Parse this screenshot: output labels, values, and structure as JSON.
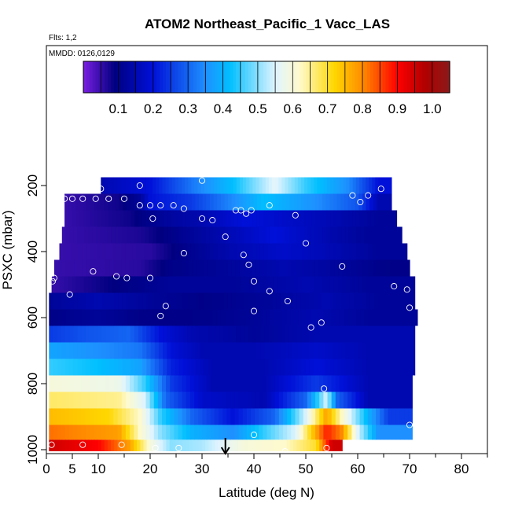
{
  "chart_data": {
    "type": "heatmap",
    "title": "ATOM2 Northeast_Pacific_1 Vacc_LAS",
    "flights_label": "Flts: 1,2",
    "dates_label": "MMDD: 0126,0129",
    "xlabel": "Latitude (deg N)",
    "ylabel": "PSXC (mbar)",
    "xlim": [
      0,
      85
    ],
    "ylim": [
      1000,
      0
    ],
    "x_ticks": [
      0,
      5,
      10,
      20,
      30,
      40,
      50,
      60,
      70,
      80
    ],
    "y_ticks": [
      200,
      400,
      600,
      800,
      1000
    ],
    "colorbar": {
      "range": [
        0,
        1.05
      ],
      "tick_values": [
        0.1,
        0.2,
        0.3,
        0.4,
        0.5,
        0.6,
        0.7,
        0.8,
        0.9,
        1.0
      ],
      "tick_labels": [
        "0.1",
        "0.2",
        "0.3",
        "0.4",
        "0.5",
        "0.6",
        "0.7",
        "0.8",
        "0.9",
        "1.0"
      ],
      "colors": [
        "#7a1fe0",
        "#000080",
        "#0010d8",
        "#1e90ff",
        "#00bfff",
        "#dff4ff",
        "#fffacd",
        "#ffd700",
        "#ff8c00",
        "#ff0000",
        "#b00000",
        "#8b1a1a"
      ],
      "stops": [
        0,
        0.09,
        0.2,
        0.35,
        0.42,
        0.55,
        0.62,
        0.72,
        0.8,
        0.9,
        0.98,
        1.05
      ]
    },
    "rows": [
      {
        "p": 200,
        "x0": 10.5,
        "x1": 66.5,
        "cells": [
          [
            10.5,
            0.15
          ],
          [
            20,
            0.2
          ],
          [
            28,
            0.32
          ],
          [
            36,
            0.42
          ],
          [
            44,
            0.56
          ],
          [
            50,
            0.45
          ],
          [
            58,
            0.35
          ],
          [
            64,
            0.2
          ]
        ]
      },
      {
        "p": 250,
        "x0": 3.5,
        "x1": 66.5,
        "cells": [
          [
            3.5,
            0.05
          ],
          [
            14,
            0.08
          ],
          [
            18,
            0.12
          ],
          [
            20,
            0.2
          ],
          [
            28,
            0.25
          ],
          [
            34,
            0.32
          ],
          [
            42,
            0.42
          ],
          [
            52,
            0.35
          ],
          [
            60,
            0.28
          ],
          [
            64,
            0.15
          ]
        ]
      },
      {
        "p": 300,
        "x0": 3.5,
        "x1": 67.5,
        "cells": [
          [
            3.5,
            0.05
          ],
          [
            16,
            0.08
          ],
          [
            22,
            0.12
          ],
          [
            30,
            0.15
          ],
          [
            38,
            0.2
          ],
          [
            46,
            0.18
          ],
          [
            56,
            0.15
          ],
          [
            64,
            0.12
          ]
        ]
      },
      {
        "p": 350,
        "x0": 3,
        "x1": 68.5,
        "cells": [
          [
            3,
            0.05
          ],
          [
            18,
            0.07
          ],
          [
            24,
            0.1
          ],
          [
            34,
            0.15
          ],
          [
            44,
            0.2
          ],
          [
            54,
            0.15
          ],
          [
            62,
            0.12
          ]
        ]
      },
      {
        "p": 400,
        "x0": 2.5,
        "x1": 69.5,
        "cells": [
          [
            2.5,
            0.05
          ],
          [
            20,
            0.06
          ],
          [
            26,
            0.1
          ],
          [
            36,
            0.15
          ],
          [
            46,
            0.18
          ],
          [
            56,
            0.15
          ],
          [
            64,
            0.12
          ]
        ]
      },
      {
        "p": 450,
        "x0": 1.5,
        "x1": 70,
        "cells": [
          [
            1.5,
            0.05
          ],
          [
            18,
            0.06
          ],
          [
            24,
            0.1
          ],
          [
            34,
            0.12
          ],
          [
            46,
            0.15
          ],
          [
            58,
            0.12
          ],
          [
            66,
            0.1
          ]
        ]
      },
      {
        "p": 500,
        "x0": 1,
        "x1": 71,
        "cells": [
          [
            1,
            0.05
          ],
          [
            10,
            0.08
          ],
          [
            16,
            0.1
          ],
          [
            24,
            0.12
          ],
          [
            36,
            0.12
          ],
          [
            50,
            0.15
          ],
          [
            62,
            0.12
          ]
        ]
      },
      {
        "p": 550,
        "x0": 0.5,
        "x1": 71,
        "cells": [
          [
            0.5,
            0.12
          ],
          [
            10,
            0.15
          ],
          [
            20,
            0.12
          ],
          [
            30,
            0.1
          ],
          [
            42,
            0.12
          ],
          [
            54,
            0.15
          ],
          [
            64,
            0.12
          ]
        ]
      },
      {
        "p": 600,
        "x0": 0.5,
        "x1": 71.5,
        "cells": [
          [
            0.5,
            0.1
          ],
          [
            10,
            0.12
          ],
          [
            18,
            0.1
          ],
          [
            28,
            0.1
          ],
          [
            40,
            0.12
          ],
          [
            52,
            0.15
          ],
          [
            62,
            0.12
          ]
        ]
      },
      {
        "p": 650,
        "x0": 0.5,
        "x1": 71,
        "cells": [
          [
            0.5,
            0.25
          ],
          [
            8,
            0.28
          ],
          [
            16,
            0.3
          ],
          [
            22,
            0.2
          ],
          [
            28,
            0.15
          ],
          [
            40,
            0.12
          ],
          [
            52,
            0.15
          ],
          [
            62,
            0.15
          ]
        ]
      },
      {
        "p": 700,
        "x0": 0.5,
        "x1": 71,
        "cells": [
          [
            0.5,
            0.38
          ],
          [
            10,
            0.35
          ],
          [
            18,
            0.32
          ],
          [
            24,
            0.2
          ],
          [
            30,
            0.15
          ],
          [
            40,
            0.15
          ],
          [
            52,
            0.18
          ],
          [
            62,
            0.15
          ]
        ]
      },
      {
        "p": 750,
        "x0": 0.5,
        "x1": 71,
        "cells": [
          [
            0.5,
            0.45
          ],
          [
            10,
            0.42
          ],
          [
            18,
            0.38
          ],
          [
            24,
            0.22
          ],
          [
            32,
            0.15
          ],
          [
            42,
            0.15
          ],
          [
            52,
            0.2
          ],
          [
            62,
            0.15
          ]
        ]
      },
      {
        "p": 800,
        "x0": 0.5,
        "x1": 70.5,
        "cells": [
          [
            0.5,
            0.6
          ],
          [
            14,
            0.58
          ],
          [
            19,
            0.45
          ],
          [
            24,
            0.25
          ],
          [
            32,
            0.15
          ],
          [
            42,
            0.15
          ],
          [
            52,
            0.25
          ],
          [
            62,
            0.15
          ]
        ]
      },
      {
        "p": 850,
        "x0": 0.5,
        "x1": 70.5,
        "cells": [
          [
            0.5,
            0.67
          ],
          [
            14,
            0.65
          ],
          [
            19,
            0.55
          ],
          [
            23,
            0.3
          ],
          [
            30,
            0.18
          ],
          [
            42,
            0.15
          ],
          [
            50,
            0.3
          ],
          [
            54,
            0.55
          ],
          [
            56,
            0.3
          ],
          [
            62,
            0.15
          ]
        ]
      },
      {
        "p": 900,
        "x0": 0.5,
        "x1": 70.5,
        "cells": [
          [
            0.5,
            0.75
          ],
          [
            12,
            0.72
          ],
          [
            18,
            0.62
          ],
          [
            22,
            0.45
          ],
          [
            28,
            0.3
          ],
          [
            36,
            0.2
          ],
          [
            44,
            0.3
          ],
          [
            50,
            0.55
          ],
          [
            54,
            0.78
          ],
          [
            57,
            0.62
          ],
          [
            62,
            0.4
          ],
          [
            66,
            0.25
          ]
        ]
      },
      {
        "p": 950,
        "x0": 0.5,
        "x1": 70.5,
        "cells": [
          [
            0.5,
            0.82
          ],
          [
            14,
            0.78
          ],
          [
            18,
            0.62
          ],
          [
            22,
            0.5
          ],
          [
            28,
            0.4
          ],
          [
            36,
            0.35
          ],
          [
            42,
            0.45
          ],
          [
            48,
            0.55
          ],
          [
            51,
            0.72
          ],
          [
            54,
            0.88
          ],
          [
            57,
            0.8
          ],
          [
            60,
            0.55
          ],
          [
            64,
            0.35
          ]
        ]
      },
      {
        "p": 990,
        "x0": 0.5,
        "x1": 57,
        "cells": [
          [
            0.5,
            0.95
          ],
          [
            10,
            0.9
          ],
          [
            16,
            0.78
          ],
          [
            20,
            0.6
          ],
          [
            24,
            0.5
          ],
          [
            30,
            0.52
          ],
          [
            38,
            0.6
          ],
          [
            46,
            0.62
          ],
          [
            52,
            0.7
          ],
          [
            55,
            0.95
          ]
        ]
      }
    ],
    "sample_points": [
      [
        10.5,
        210
      ],
      [
        18,
        200
      ],
      [
        30,
        185
      ],
      [
        3.5,
        240
      ],
      [
        5,
        240
      ],
      [
        7,
        240
      ],
      [
        9.5,
        240
      ],
      [
        12,
        240
      ],
      [
        15,
        240
      ],
      [
        18,
        260
      ],
      [
        20,
        260
      ],
      [
        22,
        260
      ],
      [
        24.5,
        260
      ],
      [
        26.5,
        270
      ],
      [
        30,
        300
      ],
      [
        32,
        305
      ],
      [
        36.5,
        275
      ],
      [
        37.5,
        275
      ],
      [
        39.5,
        275
      ],
      [
        38.5,
        285
      ],
      [
        48,
        290
      ],
      [
        59,
        230
      ],
      [
        60.5,
        250
      ],
      [
        62,
        230
      ],
      [
        64.5,
        210
      ],
      [
        20.5,
        300
      ],
      [
        34.5,
        355
      ],
      [
        26.5,
        405
      ],
      [
        38,
        410
      ],
      [
        39,
        440
      ],
      [
        43,
        260
      ],
      [
        50,
        375
      ],
      [
        57,
        445
      ],
      [
        1.5,
        480
      ],
      [
        1.2,
        490
      ],
      [
        9,
        460
      ],
      [
        13.5,
        475
      ],
      [
        15.5,
        480
      ],
      [
        20,
        480
      ],
      [
        4.5,
        530
      ],
      [
        40,
        490
      ],
      [
        43,
        520
      ],
      [
        46.5,
        550
      ],
      [
        67,
        505
      ],
      [
        69.5,
        515
      ],
      [
        22,
        595
      ],
      [
        23,
        565
      ],
      [
        40,
        580
      ],
      [
        51,
        630
      ],
      [
        53,
        615
      ],
      [
        70,
        570
      ],
      [
        53.5,
        815
      ],
      [
        70,
        925
      ],
      [
        40,
        955
      ],
      [
        1,
        985
      ],
      [
        7,
        985
      ],
      [
        14.5,
        985
      ],
      [
        21,
        995
      ],
      [
        25.5,
        995
      ],
      [
        46,
        1005
      ],
      [
        54,
        995
      ]
    ],
    "arrow_latitude": 34.5
  }
}
